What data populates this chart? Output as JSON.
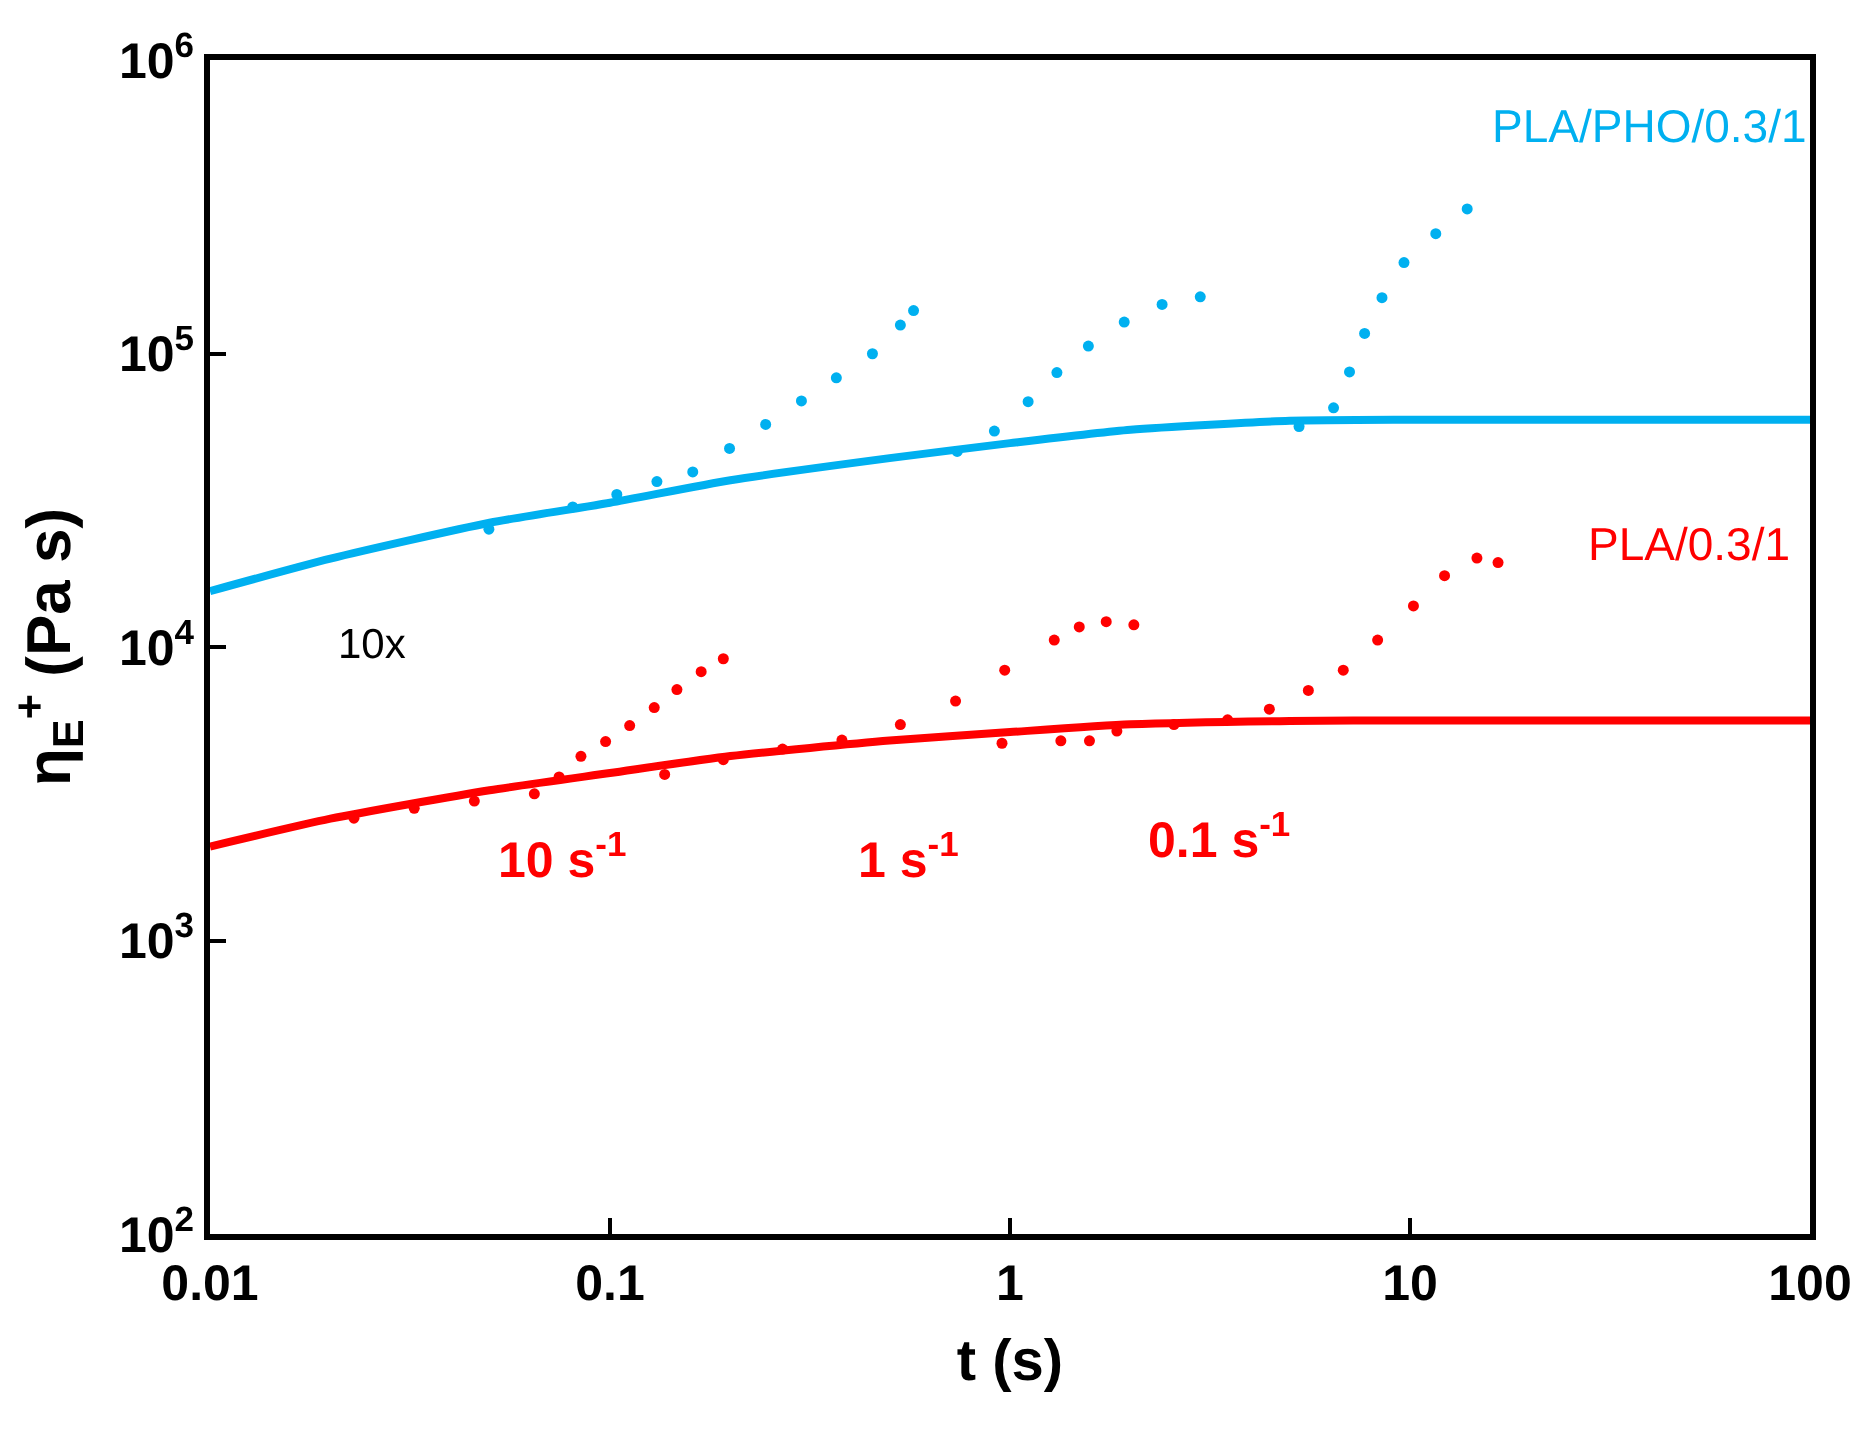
{
  "chart_data": {
    "type": "scatter",
    "xlabel": "t (s)",
    "ylabel": "η$_{E}$$^{+}$ (Pa s)",
    "log": "xy",
    "legend": false,
    "xlim": [
      0.01,
      100
    ],
    "ylim": [
      100,
      1000000
    ],
    "xticks": [
      {
        "value": 0.01,
        "label": "0.01"
      },
      {
        "value": 0.1,
        "label": "0.1"
      },
      {
        "value": 1,
        "label": "1"
      },
      {
        "value": 10,
        "label": "10"
      },
      {
        "value": 100,
        "label": "100"
      }
    ],
    "yticks": [
      {
        "value": 100,
        "label": "10$^{2}$"
      },
      {
        "value": 1000,
        "label": "10$^{3}$"
      },
      {
        "value": 10000,
        "label": "10$^{4}$"
      },
      {
        "value": 100000,
        "label": "10$^{5}$"
      },
      {
        "value": 1000000,
        "label": "10$^{6}$"
      }
    ],
    "series": [
      {
        "name": "PLA/PHO/0.3/1",
        "type": "line",
        "marker": "none",
        "line_style": "solid",
        "color": "#00b0f0",
        "x": [
          0.01,
          0.02,
          0.05,
          0.1,
          0.2,
          0.5,
          1,
          2,
          5,
          10,
          100
        ],
        "values": [
          15500,
          20000,
          26500,
          31000,
          37000,
          44000,
          49500,
          55000,
          59000,
          59500,
          59500
        ]
      },
      {
        "marker": "circle",
        "color": "#00b0f0",
        "x": [
          0.0498,
          0.0807,
          0.104,
          0.131,
          0.161,
          0.199,
          0.245,
          0.301,
          0.368,
          0.453,
          0.532,
          0.574
        ],
        "values": [
          25200,
          30000,
          33100,
          36600,
          39500,
          47500,
          57300,
          68900,
          82600,
          99800,
          125000,
          140000
        ]
      },
      {
        "marker": "circle",
        "color": "#00b0f0",
        "x": [
          0.738,
          0.914,
          1.11,
          1.31,
          1.57,
          1.93,
          2.4,
          2.99
        ],
        "values": [
          46400,
          54400,
          68500,
          86100,
          106000,
          128000,
          147000,
          156000
        ]
      },
      {
        "marker": "circle",
        "color": "#00b0f0",
        "x": [
          5.28,
          6.44,
          7.06,
          7.7,
          8.51,
          9.66,
          11.6,
          13.9
        ],
        "values": [
          56400,
          65300,
          86500,
          117000,
          155000,
          204000,
          256000,
          311000
        ]
      },
      {
        "name": "PLA/0.3/1",
        "type": "line",
        "marker": "none",
        "line_style": "solid",
        "color": "#ff0000",
        "x": [
          0.01,
          0.02,
          0.05,
          0.1,
          0.2,
          0.5,
          1,
          2,
          5,
          10,
          100
        ],
        "values": [
          2090,
          2600,
          3250,
          3720,
          4250,
          4800,
          5130,
          5450,
          5600,
          5620,
          5620
        ]
      },
      {
        "marker": "circle",
        "color": "#ff0000",
        "x": [
          0.0229,
          0.0324,
          0.0458,
          0.0647,
          0.0746,
          0.0846,
          0.0975,
          0.112,
          0.129,
          0.147,
          0.169,
          0.192
        ],
        "values": [
          2610,
          2820,
          2985,
          3160,
          3610,
          4240,
          4760,
          5400,
          6220,
          7160,
          8240,
          9120
        ]
      },
      {
        "marker": "circle",
        "color": "#ff0000",
        "x": [
          0.137,
          0.192,
          0.27,
          0.38,
          0.532,
          0.731,
          0.97,
          1.29,
          1.49,
          1.74,
          2.04
        ],
        "values": [
          3680,
          4130,
          4490,
          4820,
          5440,
          6540,
          8340,
          10560,
          11700,
          12200,
          11900
        ]
      },
      {
        "marker": "circle",
        "color": "#ff0000",
        "x": [
          0.955,
          1.34,
          1.58,
          1.85,
          2.57,
          3.5,
          4.45,
          5.57,
          6.81,
          8.3,
          10.2,
          12.2,
          14.7,
          16.6
        ],
        "values": [
          4700,
          4790,
          4790,
          5170,
          5440,
          5650,
          6140,
          7110,
          8340,
          10560,
          13800,
          17500,
          20100,
          19400
        ]
      }
    ],
    "annotations": [
      "10x",
      "10 s$^{-1}$",
      "1 s$^{-1}$",
      "0.1 s$^{-1}$"
    ]
  }
}
